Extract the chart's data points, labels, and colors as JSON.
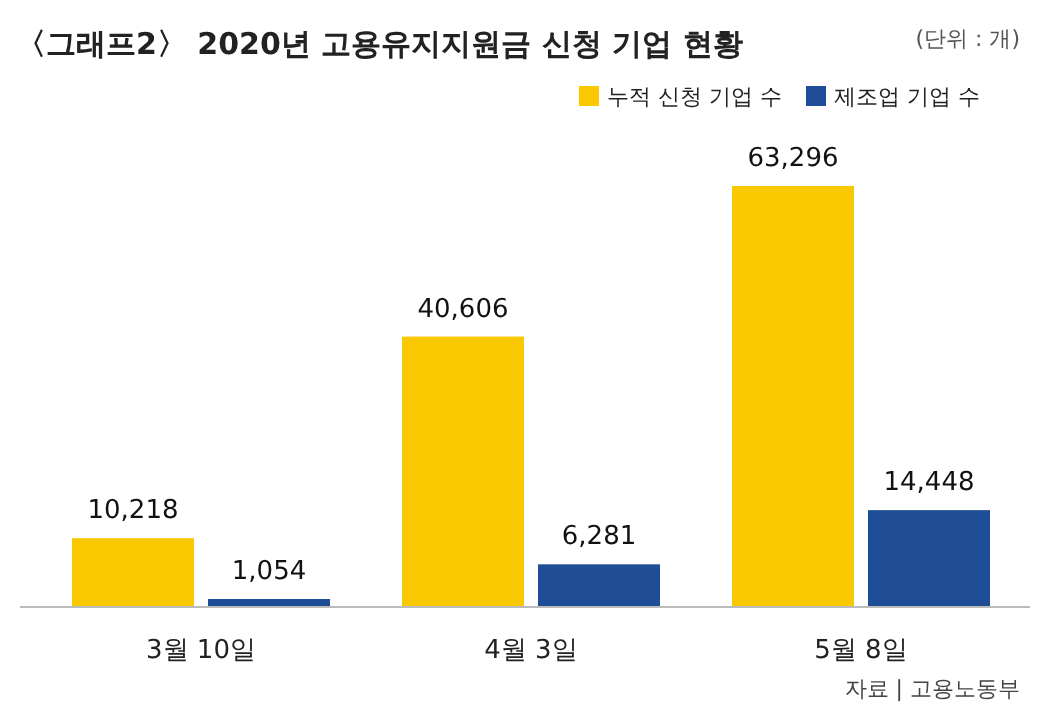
{
  "chart_data": {
    "type": "bar",
    "title": "〈그래프2〉 2020년 고용유지지원금 신청 기업 현황",
    "subtitle": "(단위 : 개)",
    "annotations": [
      "자료 | 고용노동부"
    ],
    "categories": [
      "3월 10일",
      "4월 3일",
      "5월 8일"
    ],
    "series": [
      {
        "name": "누적 신청 기업 수",
        "color": "#f9c800",
        "values": [
          10218,
          40606,
          63296
        ],
        "value_labels": [
          "10,218",
          "40,606",
          "63,296"
        ]
      },
      {
        "name": "제조업 기업 수",
        "color": "#1f4e96",
        "values": [
          1054,
          6281,
          14448
        ],
        "value_labels": [
          "1,054",
          "6,281",
          "14,448"
        ]
      }
    ],
    "legend": "top right"
  }
}
